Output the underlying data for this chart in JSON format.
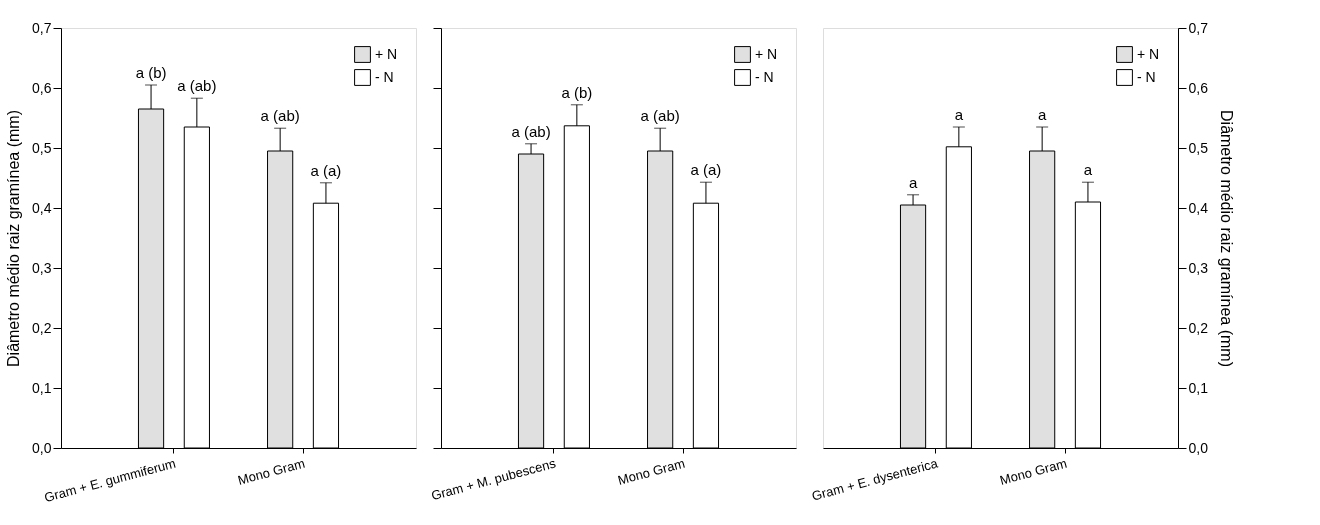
{
  "chart_data": [
    {
      "type": "bar",
      "categories": [
        "Gram + E. gummiferum",
        "Mono Gram"
      ],
      "ylabel": "Diâmetro médio raiz gramínea (mm)",
      "ylim": [
        0,
        0.7
      ],
      "yticks": [
        {
          "value": 0,
          "label": "0,0"
        },
        {
          "value": 0.1,
          "label": "0,1"
        },
        {
          "value": 0.2,
          "label": "0,2"
        },
        {
          "value": 0.3,
          "label": "0,3"
        },
        {
          "value": 0.4,
          "label": "0,4"
        },
        {
          "value": 0.5,
          "label": "0,5"
        },
        {
          "value": 0.6,
          "label": "0,6"
        },
        {
          "value": 0.7,
          "label": "0,7"
        }
      ],
      "series": [
        {
          "name": "+ N",
          "color": "#e0e0e0",
          "values": [
            0.565,
            0.495
          ],
          "errors": [
            [
              0.565,
              0.605
            ],
            [
              0.495,
              0.533
            ]
          ],
          "value_labels": [
            "a (b)",
            "a (ab)"
          ]
        },
        {
          "name": "- N",
          "color": "#ffffff",
          "values": [
            0.535,
            0.408
          ],
          "errors": [
            [
              0.535,
              0.583
            ],
            [
              0.408,
              0.442
            ]
          ],
          "value_labels": [
            "a (ab)",
            "a (a)"
          ]
        }
      ],
      "legend": "top right"
    },
    {
      "type": "bar",
      "categories": [
        "Gram + M. pubescens",
        "Mono Gram"
      ],
      "ylim": [
        0,
        0.7
      ],
      "yticks": [
        {
          "value": 0,
          "label": null
        },
        {
          "value": 0.1,
          "label": null
        },
        {
          "value": 0.2,
          "label": null
        },
        {
          "value": 0.3,
          "label": null
        },
        {
          "value": 0.4,
          "label": null
        },
        {
          "value": 0.5,
          "label": null
        },
        {
          "value": 0.6,
          "label": null
        },
        {
          "value": 0.7,
          "label": null
        }
      ],
      "tick_labels": "x",
      "series": [
        {
          "name": "+ N",
          "color": "#e0e0e0",
          "values": [
            0.49,
            0.495
          ],
          "errors": [
            [
              0.49,
              0.507
            ],
            [
              0.495,
              0.533
            ]
          ],
          "value_labels": [
            "a (ab)",
            "a (ab)"
          ]
        },
        {
          "name": "- N",
          "color": "#ffffff",
          "values": [
            0.537,
            0.408
          ],
          "errors": [
            [
              0.537,
              0.572
            ],
            [
              0.408,
              0.443
            ]
          ],
          "value_labels": [
            "a (b)",
            "a (a)"
          ]
        }
      ],
      "legend": "top right"
    },
    {
      "type": "bar",
      "categories": [
        "Gram + E. dysenterica",
        "Mono Gram"
      ],
      "y2label": "Diâmetro médio raiz gramínea (mm)",
      "y2lim": [
        0,
        0.7
      ],
      "y2ticks": [
        {
          "value": 0,
          "label": "0,0"
        },
        {
          "value": 0.1,
          "label": "0,1"
        },
        {
          "value": 0.2,
          "label": "0,2"
        },
        {
          "value": 0.3,
          "label": "0,3"
        },
        {
          "value": 0.4,
          "label": "0,4"
        },
        {
          "value": 0.5,
          "label": "0,5"
        },
        {
          "value": 0.6,
          "label": "0,6"
        },
        {
          "value": 0.7,
          "label": "0,7"
        }
      ],
      "series": [
        {
          "name": "+ N",
          "color": "#e0e0e0",
          "values": [
            0.405,
            0.495
          ],
          "errors": [
            [
              0.405,
              0.422
            ],
            [
              0.495,
              0.535
            ]
          ],
          "value_labels": [
            "a",
            "a"
          ],
          "axis": "y2"
        },
        {
          "name": "- N",
          "color": "#ffffff",
          "values": [
            0.502,
            0.41
          ],
          "errors": [
            [
              0.502,
              0.535
            ],
            [
              0.41,
              0.443
            ]
          ],
          "value_labels": [
            "a",
            "a"
          ],
          "axis": "y2"
        }
      ],
      "legend": "top right"
    }
  ]
}
